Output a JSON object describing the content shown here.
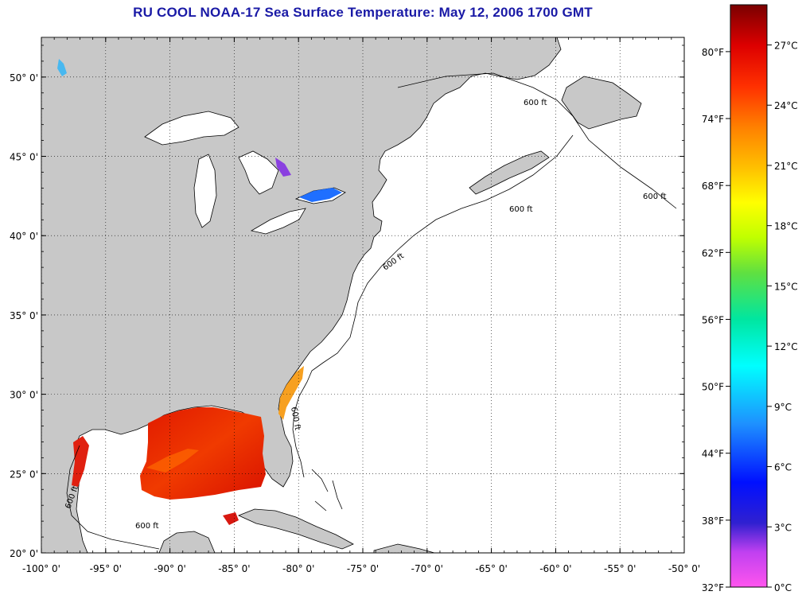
{
  "title": "RU COOL  NOAA-17  Sea Surface Temperature:  May 12, 2006 1700 GMT",
  "map": {
    "lon_range": [
      -100,
      -50
    ],
    "lat_range": [
      20,
      52.5
    ],
    "lon_ticks": [
      {
        "value": -100,
        "label": "-100° 0'"
      },
      {
        "value": -95,
        "label": "-95° 0'"
      },
      {
        "value": -90,
        "label": "-90° 0'"
      },
      {
        "value": -85,
        "label": "-85° 0'"
      },
      {
        "value": -80,
        "label": "-80° 0'"
      },
      {
        "value": -75,
        "label": "-75° 0'"
      },
      {
        "value": -70,
        "label": "-70° 0'"
      },
      {
        "value": -65,
        "label": "-65° 0'"
      },
      {
        "value": -60,
        "label": "-60° 0'"
      },
      {
        "value": -55,
        "label": "-55° 0'"
      },
      {
        "value": -50,
        "label": "-50° 0'"
      }
    ],
    "lat_ticks": [
      {
        "value": 20,
        "label": "20° 0'"
      },
      {
        "value": 25,
        "label": "25° 0'"
      },
      {
        "value": 30,
        "label": "30° 0'"
      },
      {
        "value": 35,
        "label": "35° 0'"
      },
      {
        "value": 40,
        "label": "40° 0'"
      },
      {
        "value": 45,
        "label": "45° 0'"
      },
      {
        "value": 50,
        "label": "50° 0'"
      }
    ],
    "grid": "dotted",
    "contour_label": "600 ft",
    "colors": {
      "land": "#c8c8c8",
      "water": "#ffffff",
      "coast": "#000000"
    }
  },
  "colorbar": {
    "fahrenheit_labels": [
      "80°F",
      "74°F",
      "68°F",
      "62°F",
      "56°F",
      "50°F",
      "44°F",
      "38°F",
      "32°F"
    ],
    "celsius_labels": [
      "27°C",
      "24°C",
      "21°C",
      "18°C",
      "15°C",
      "12°C",
      "9°C",
      "6°C",
      "3°C",
      "0°C"
    ],
    "range_c": [
      0,
      29
    ],
    "gradient": [
      "#ff55ee",
      "#a020f0",
      "#2020d0",
      "#0000ff",
      "#1e90ff",
      "#00ffff",
      "#00e6a0",
      "#40e040",
      "#aaff00",
      "#ffff00",
      "#ffc000",
      "#ff8000",
      "#ff3000",
      "#e00000",
      "#a00000",
      "#7a0000"
    ]
  }
}
